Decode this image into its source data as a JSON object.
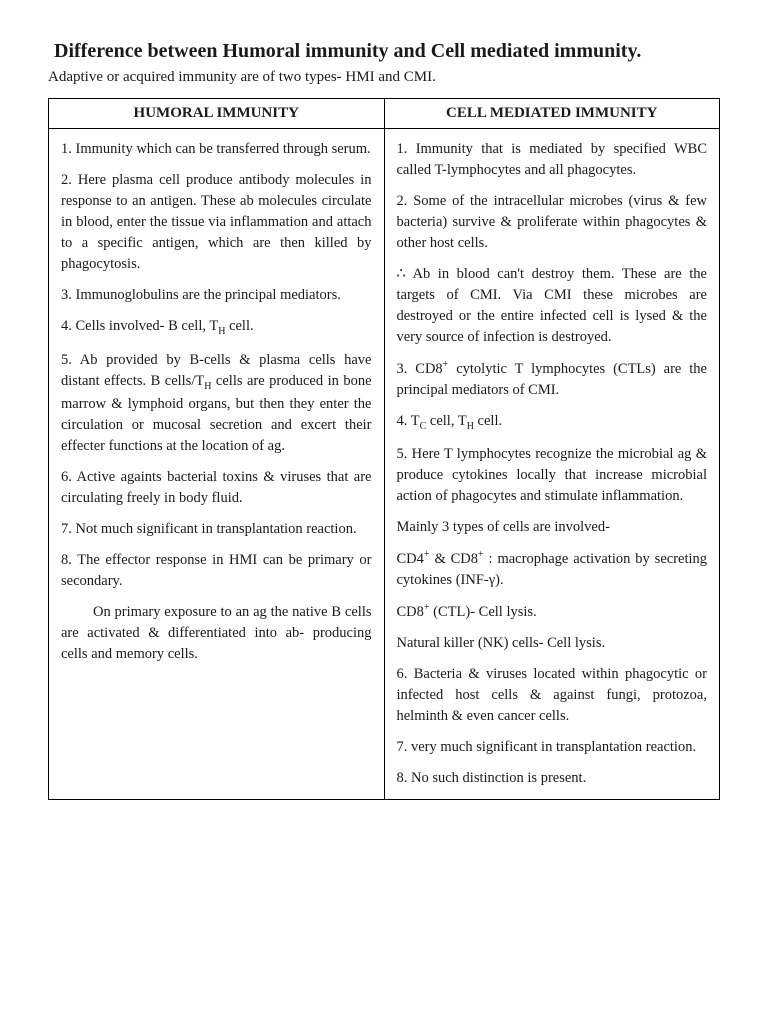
{
  "title": "Difference between Humoral immunity and Cell mediated immunity.",
  "subtitle": "Adaptive or acquired immunity are of two types- HMI and CMI.",
  "headers": {
    "left": "HUMORAL IMMUNITY",
    "right": "CELL MEDIATED IMMUNITY"
  },
  "left": {
    "p1": "1. Immunity which can be transferred through serum.",
    "p2": "2. Here plasma cell produce antibody molecules in response to an antigen. These ab molecules circulate in blood, enter the tissue via inflammation and attach to a specific antigen, which are then killed by phagocytosis.",
    "p3": "3. Immunoglobulins are the principal mediators.",
    "p4_a": "4. Cells involved- B cell, T",
    "p4_b": " cell.",
    "p5_a": "5. Ab provided by B-cells & plasma cells have distant effects. B cells/T",
    "p5_b": " cells are produced in bone marrow & lymphoid organs, but then they enter the circulation or mucosal secretion and excert their effecter functions at the location of ag.",
    "p6": "6. Active againts bacterial toxins & viruses that are circulating freely in body fluid.",
    "p7": "7. Not much significant in transplantation reaction.",
    "p8": "8. The effector response in HMI can be primary or secondary.",
    "p8b": "On primary exposure to an ag the native B cells are activated & differentiated into ab- producing cells and memory cells."
  },
  "right": {
    "p1": "1. Immunity that is mediated by specified WBC called T-lymphocytes and all phagocytes.",
    "p2a": "2. Some of the intracellular microbes (virus & few bacteria) survive & proliferate within phagocytes & other host cells.",
    "p2b": "∴ Ab in blood can't destroy them. These are the targets of CMI. Via CMI these microbes are destroyed or the entire infected cell is lysed & the very source of infection is destroyed.",
    "p3_a": "3. CD8",
    "p3_b": " cytolytic T lymphocytes (CTLs) are the principal mediators of CMI.",
    "p4_a": "4. T",
    "p4_b": " cell, T",
    "p4_c": " cell.",
    "p5": "5. Here T lymphocytes recognize the microbial ag & produce cytokines locally that increase microbial action of phagocytes and stimulate inflammation.",
    "p5b": "Mainly 3 types of cells are involved-",
    "p5c_a": "CD4",
    "p5c_b": " & CD8",
    "p5c_c": " : macrophage activation by secreting cytokines (INF-γ).",
    "p5d_a": "CD8",
    "p5d_b": " (CTL)- Cell lysis.",
    "p5e": "Natural killer (NK) cells- Cell lysis.",
    "p6": "6. Bacteria & viruses located within phagocytic or infected host cells & against fungi, protozoa, helminth & even cancer cells.",
    "p7": "7. very much significant in transplantation reaction.",
    "p8": "8. No such distinction is present."
  },
  "subscripts": {
    "H": "H",
    "C": "C"
  },
  "superscripts": {
    "plus": "+"
  }
}
